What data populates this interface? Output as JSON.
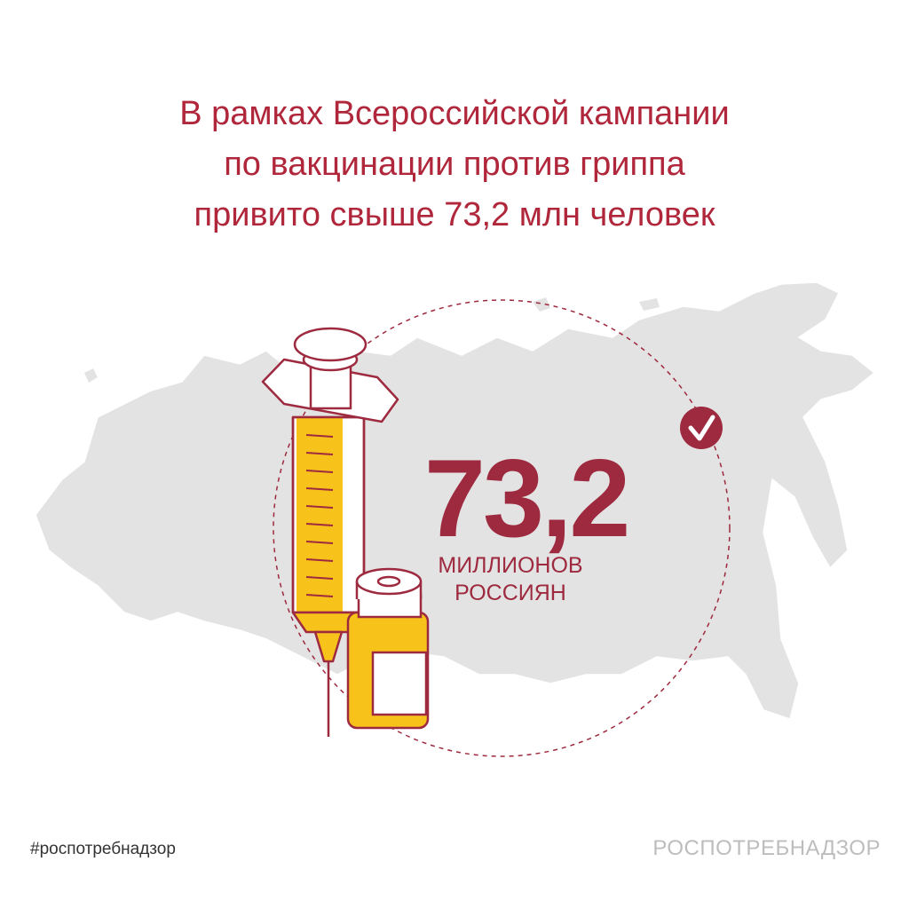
{
  "title": {
    "lines": [
      "В рамках Всероссийской кампании",
      "по вакцинации против гриппа",
      "привито свыше 73,2 млн человек"
    ]
  },
  "stat": {
    "value": "73,2",
    "unit_line1": "МИЛЛИОНОВ",
    "unit_line2": "РОССИЯН"
  },
  "icons": [
    "russia-map",
    "syringe-icon",
    "vaccine-vial-icon",
    "check-icon"
  ],
  "footer": {
    "hashtag": "#роспотребнадзор",
    "brand": "РОСПОТРЕБНАДЗОР"
  },
  "colors": {
    "accent": "#9e2a3f",
    "title": "#b0273b",
    "vaccine": "#f7c21a",
    "map": "#e3e3e3"
  }
}
